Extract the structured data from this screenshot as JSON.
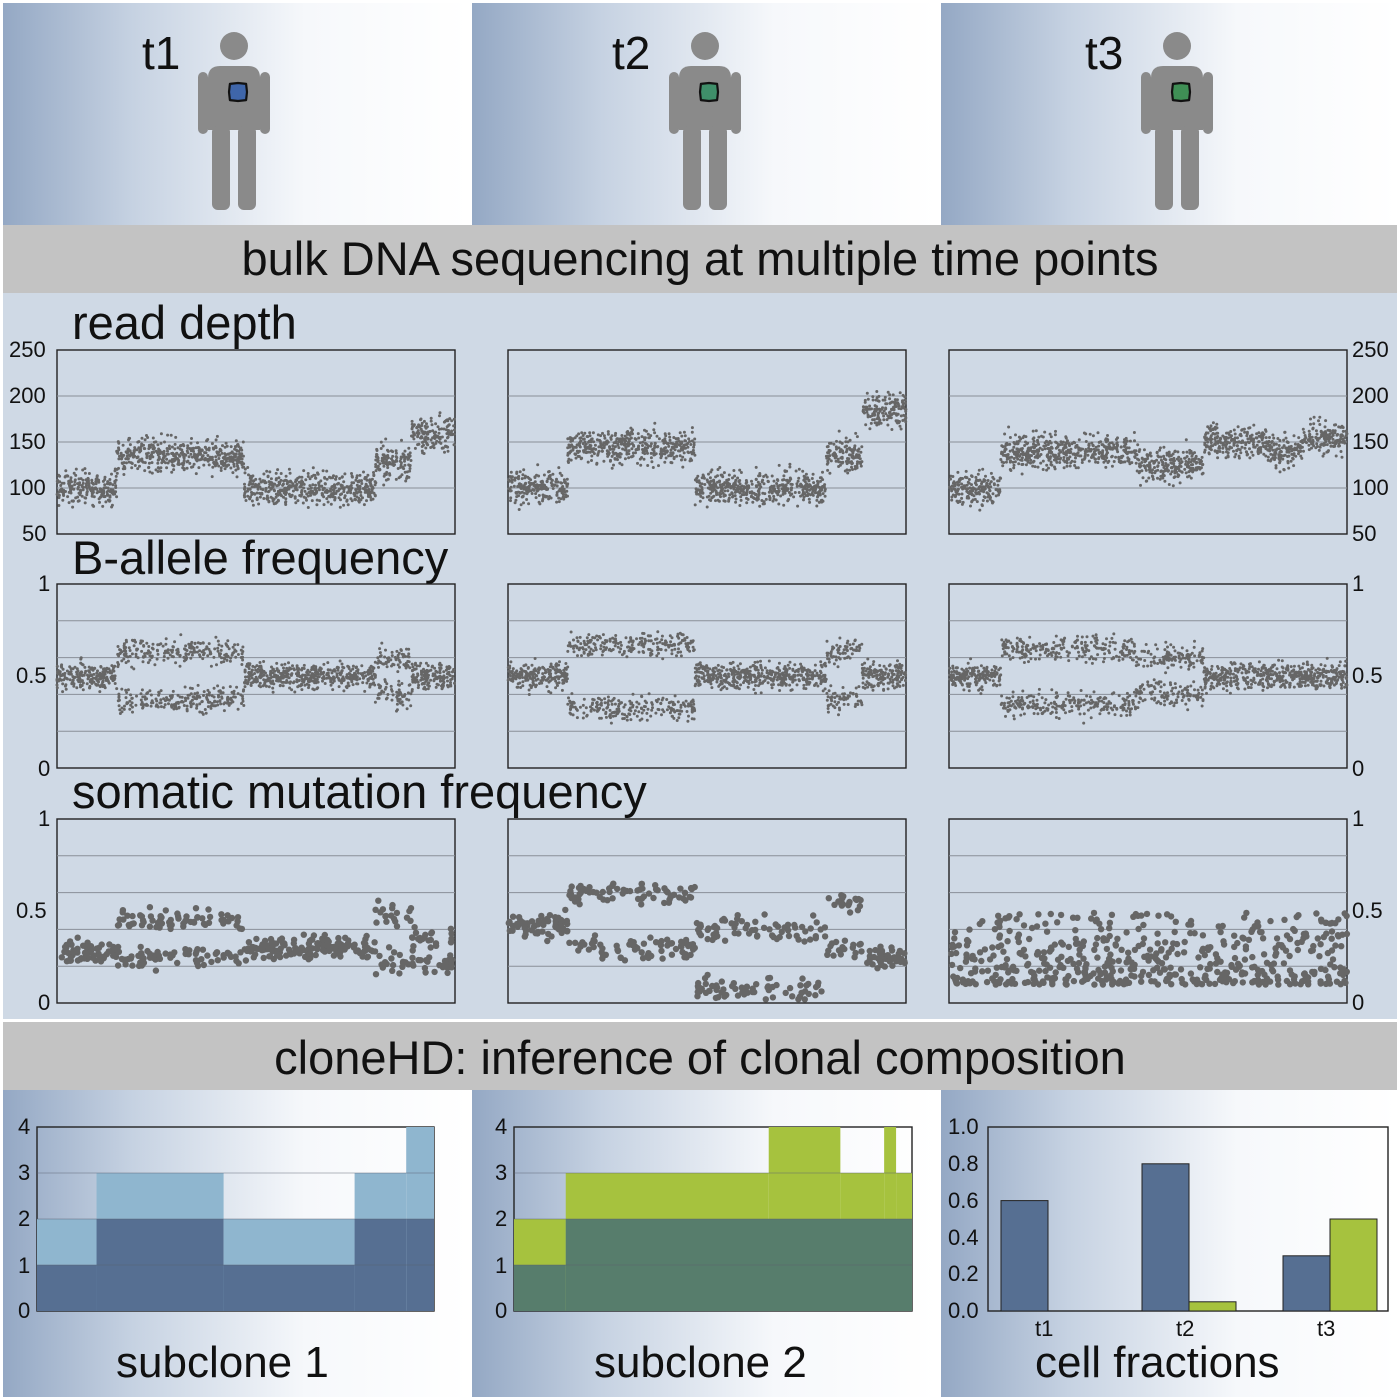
{
  "timepoints": [
    "t1",
    "t2",
    "t3"
  ],
  "tumor_colors": [
    "#3f66aa",
    "#3f8f6a",
    "#3f8f55"
  ],
  "banner1": "bulk DNA sequencing at multiple time points",
  "banner2": "cloneHD: inference of clonal composition",
  "sections": {
    "read_depth": "read depth",
    "baf": "B-allele frequency",
    "smf": "somatic mutation frequency"
  },
  "ticks": {
    "read_depth": [
      "250",
      "200",
      "150",
      "100",
      "50"
    ],
    "freq": [
      "1",
      "0.5",
      "0"
    ],
    "copy": [
      "4",
      "3",
      "2",
      "1",
      "0"
    ],
    "fraction": [
      "1.0",
      "0.8",
      "0.6",
      "0.4",
      "0.2",
      "0.0"
    ]
  },
  "bottom_labels": [
    "subclone 1",
    "subclone 2",
    "cell fractions"
  ],
  "colors": {
    "point": "#666666",
    "sub1_light": "#8fb6cf",
    "sub1_dark": "#566f92",
    "sub2_light": "#a6c23e",
    "sub2_dark": "#577d6c",
    "bar_blue": "#566f92",
    "bar_green": "#a6c23e"
  },
  "chart_data": [
    {
      "type": "scatter",
      "title": "read depth",
      "ylim": [
        50,
        250
      ],
      "yticks": [
        50,
        100,
        150,
        200,
        250
      ],
      "panels": {
        "t1": [
          [
            0,
            0.15,
            100
          ],
          [
            0.15,
            0.47,
            135
          ],
          [
            0.47,
            0.8,
            100
          ],
          [
            0.8,
            0.89,
            127
          ],
          [
            0.89,
            1.0,
            160
          ]
        ],
        "t2": [
          [
            0,
            0.15,
            100
          ],
          [
            0.15,
            0.47,
            145
          ],
          [
            0.47,
            0.8,
            100
          ],
          [
            0.8,
            0.89,
            135
          ],
          [
            0.89,
            1.0,
            185
          ]
        ],
        "t3": [
          [
            0,
            0.13,
            100
          ],
          [
            0.13,
            0.47,
            140
          ],
          [
            0.47,
            0.64,
            125
          ],
          [
            0.64,
            0.8,
            150
          ],
          [
            0.8,
            0.89,
            140
          ],
          [
            0.89,
            1.0,
            155
          ]
        ]
      }
    },
    {
      "type": "scatter",
      "title": "B-allele frequency",
      "ylim": [
        0,
        1
      ],
      "yticks": [
        0,
        0.5,
        1
      ],
      "panels": {
        "t1": [
          [
            0,
            0.15,
            0.5
          ],
          [
            0.15,
            0.47,
            0.37,
            0.63
          ],
          [
            0.47,
            0.8,
            0.5
          ],
          [
            0.8,
            0.89,
            0.4,
            0.6
          ],
          [
            0.89,
            1.0,
            0.5
          ]
        ],
        "t2": [
          [
            0,
            0.15,
            0.5
          ],
          [
            0.15,
            0.47,
            0.33,
            0.67
          ],
          [
            0.47,
            0.8,
            0.5
          ],
          [
            0.8,
            0.89,
            0.37,
            0.63
          ],
          [
            0.89,
            1.0,
            0.5
          ]
        ],
        "t3": [
          [
            0,
            0.13,
            0.5
          ],
          [
            0.13,
            0.47,
            0.35,
            0.65
          ],
          [
            0.47,
            0.64,
            0.4,
            0.6
          ],
          [
            0.64,
            1.0,
            0.5
          ]
        ]
      }
    },
    {
      "type": "scatter",
      "title": "somatic mutation frequency",
      "ylim": [
        0,
        1
      ],
      "yticks": [
        0,
        0.5,
        1
      ],
      "panels": {
        "t1": [
          [
            0,
            0.15,
            0.28
          ],
          [
            0.15,
            0.47,
            0.25,
            0.45
          ],
          [
            0.47,
            0.8,
            0.3
          ],
          [
            0.8,
            0.89,
            0.22,
            0.48
          ],
          [
            0.89,
            1.0,
            0.2,
            0.35
          ]
        ],
        "t2": [
          [
            0,
            0.15,
            0.42
          ],
          [
            0.15,
            0.47,
            0.3,
            0.6
          ],
          [
            0.47,
            0.8,
            0.4,
            0.07
          ],
          [
            0.8,
            0.89,
            0.3,
            0.55
          ],
          [
            0.89,
            1.0,
            0.25
          ]
        ],
        "t3": [
          [
            0,
            1.0,
            0.1,
            0.4
          ]
        ]
      }
    },
    {
      "type": "area",
      "title": "subclone 1",
      "ylim": [
        0,
        4
      ],
      "yticks": [
        0,
        1,
        2,
        3,
        4
      ],
      "segments": [
        [
          0,
          0.15,
          1,
          2
        ],
        [
          0.15,
          0.47,
          2,
          3
        ],
        [
          0.47,
          0.8,
          1,
          2
        ],
        [
          0.8,
          0.93,
          2,
          3
        ],
        [
          0.93,
          1.0,
          2,
          4
        ]
      ]
    },
    {
      "type": "area",
      "title": "subclone 2",
      "ylim": [
        0,
        4
      ],
      "yticks": [
        0,
        1,
        2,
        3,
        4
      ],
      "segments": [
        [
          0,
          0.13,
          2
        ],
        [
          0.13,
          0.64,
          3
        ],
        [
          0.64,
          0.82,
          4
        ],
        [
          0.82,
          0.93,
          3
        ],
        [
          0.93,
          0.96,
          4
        ],
        [
          0.96,
          1.0,
          3
        ]
      ]
    },
    {
      "type": "bar",
      "title": "cell fractions",
      "categories": [
        "t1",
        "t2",
        "t3"
      ],
      "series": [
        {
          "values": [
            0.6,
            0.8,
            0.3
          ]
        },
        {
          "values": [
            0.0,
            0.05,
            0.5
          ]
        }
      ],
      "ylim": [
        0,
        1
      ]
    }
  ]
}
